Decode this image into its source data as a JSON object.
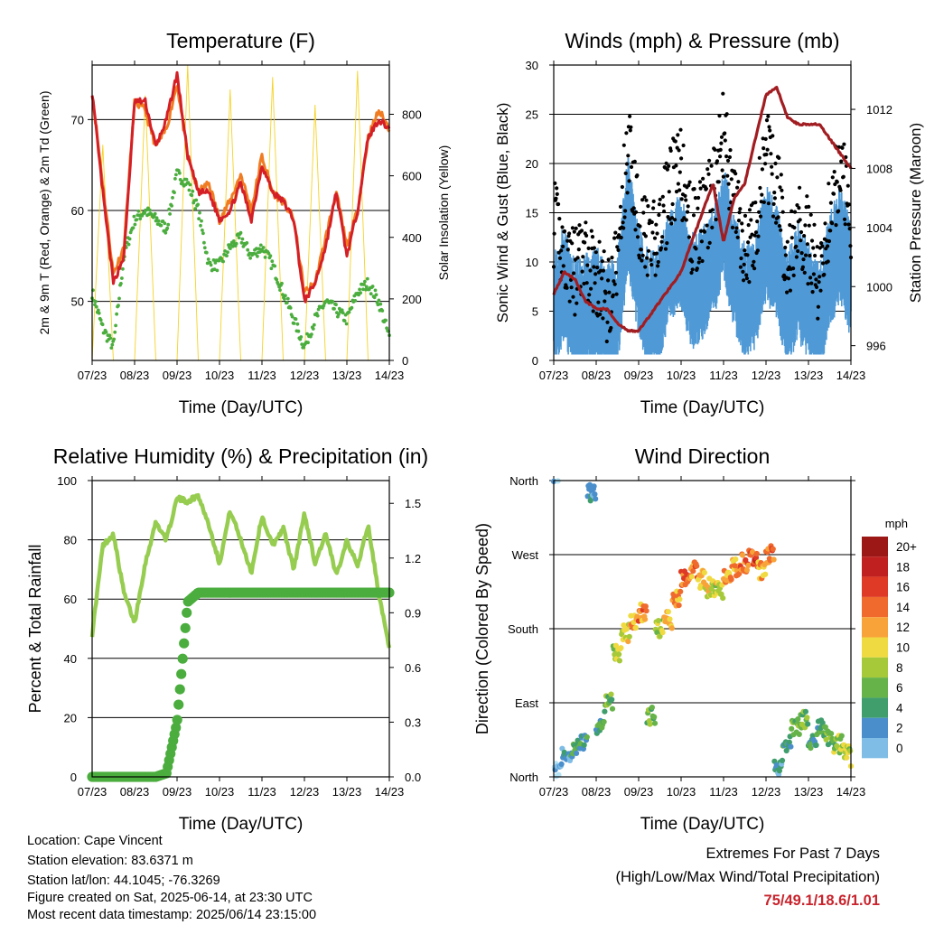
{
  "colors": {
    "temp_2m": "#d41f26",
    "temp_9m": "#f07c22",
    "dewpoint": "#4bad3e",
    "solar": "#f5d327",
    "wind": "#4f9ad6",
    "gust": "#000000",
    "pressure": "#a11d21",
    "rh": "#96cd50",
    "precip": "#4bad3e",
    "extremes": "#c8242d",
    "speed_scale": [
      "#b3e3f5",
      "#7fbde6",
      "#4a8fcb",
      "#3f9e6c",
      "#66b34a",
      "#a6c93a",
      "#f0da41",
      "#f8a33a",
      "#ef6a2c",
      "#de3a25",
      "#c0201f",
      "#9b1817"
    ]
  },
  "charts": [
    {
      "id": "temperature",
      "title": "Temperature (F)",
      "xlabel": "Time (Day/UTC)",
      "ylabel": "2m & 9m T (Red, Orange) & 2m Td (Green)",
      "y2label": "Solar Insolation (Yellow)",
      "xticks": [
        "07/23",
        "08/23",
        "09/23",
        "10/23",
        "11/23",
        "12/23",
        "13/23",
        "14/23"
      ],
      "yticks": [
        50,
        60,
        70
      ],
      "y2ticks": [
        0,
        200,
        400,
        600,
        800
      ]
    },
    {
      "id": "wind",
      "title": "Winds (mph) & Pressure (mb)",
      "xlabel": "Time (Day/UTC)",
      "ylabel": "Sonic Wind & Gust (Blue, Black)",
      "y2label": "Station Pressure (Maroon)",
      "xticks": [
        "07/23",
        "08/23",
        "09/23",
        "10/23",
        "11/23",
        "12/23",
        "13/23",
        "14/23"
      ],
      "yticks": [
        0,
        5,
        10,
        15,
        20,
        25,
        30
      ],
      "y2ticks": [
        996,
        1000,
        1004,
        1008,
        1012
      ]
    },
    {
      "id": "humidity",
      "title": "Relative Humidity (%) & Precipitation (in)",
      "xlabel": "Time (Day/UTC)",
      "ylabel": "Percent & Total Rainfall",
      "xticks": [
        "07/23",
        "08/23",
        "09/23",
        "10/23",
        "11/23",
        "12/23",
        "13/23",
        "14/23"
      ],
      "yticks": [
        0,
        20,
        40,
        60,
        80,
        100
      ],
      "y2ticks": [
        "0.0",
        "0.3",
        "0.6",
        "0.9",
        "1.2",
        "1.5"
      ]
    },
    {
      "id": "direction",
      "title": "Wind Direction",
      "xlabel": "Time (Day/UTC)",
      "ylabel": "Direction (Colored By Speed)",
      "xticks": [
        "07/23",
        "08/23",
        "09/23",
        "10/23",
        "11/23",
        "12/23",
        "13/23",
        "14/23"
      ],
      "ytick_labels": [
        "North",
        "East",
        "South",
        "West",
        "North"
      ],
      "legend_title": "mph",
      "legend_labels": [
        "20+",
        "18",
        "16",
        "14",
        "12",
        "10",
        "8",
        "6",
        "4",
        "2",
        "0"
      ]
    }
  ],
  "chart_data": [
    {
      "type": "line",
      "x_days": [
        0,
        0.25,
        0.5,
        0.75,
        1,
        1.25,
        1.5,
        1.75,
        2,
        2.25,
        2.5,
        2.75,
        3,
        3.25,
        3.5,
        3.75,
        4,
        4.25,
        4.5,
        4.75,
        5,
        5.25,
        5.5,
        5.75,
        6,
        6.25,
        6.5,
        6.75,
        7
      ],
      "series": [
        {
          "values": [
            73,
            62,
            52,
            55,
            72,
            72,
            67,
            70,
            75,
            66,
            62,
            62,
            59,
            60,
            63,
            59,
            65,
            62,
            61,
            59,
            50,
            52,
            56,
            62,
            55,
            60,
            68,
            70,
            69
          ]
        },
        {
          "values": [
            73,
            63,
            53,
            56,
            72,
            71,
            67,
            69,
            74,
            66,
            62,
            63,
            59,
            61,
            64,
            60,
            66,
            62,
            61,
            59,
            51,
            52,
            57,
            62,
            56,
            60,
            68,
            71,
            69
          ]
        },
        {
          "values": [
            51,
            47,
            45,
            55,
            59,
            60,
            59,
            58,
            64,
            63,
            60,
            54,
            54,
            56,
            57,
            55,
            56,
            54,
            51,
            48,
            45,
            48,
            50,
            49,
            48,
            51,
            52,
            50,
            46
          ]
        },
        {
          "values": [
            0,
            700,
            0,
            0,
            0,
            860,
            0,
            0,
            0,
            960,
            0,
            0,
            0,
            880,
            0,
            0,
            0,
            920,
            0,
            0,
            0,
            830,
            0,
            0,
            0,
            940,
            0,
            0,
            0
          ]
        }
      ],
      "ylim": [
        43.5,
        76
      ],
      "y2lim": [
        0,
        960
      ]
    },
    {
      "type": "line",
      "x_days": [
        0,
        0.25,
        0.5,
        0.75,
        1,
        1.25,
        1.5,
        1.75,
        2,
        2.25,
        2.5,
        2.75,
        3,
        3.25,
        3.5,
        3.75,
        4,
        4.25,
        4.5,
        4.75,
        5,
        5.25,
        5.5,
        5.75,
        6,
        6.25,
        6.5,
        6.75,
        7
      ],
      "series": [
        {
          "values": [
            5,
            8,
            4,
            5,
            6,
            4,
            5,
            15,
            8,
            5,
            6,
            10,
            11,
            7,
            8,
            10,
            14,
            9,
            6,
            7,
            12,
            10,
            5,
            8,
            6,
            4,
            9,
            12,
            8
          ]
        },
        {
          "values": [
            14,
            11,
            9,
            10,
            9,
            6,
            10,
            22,
            15,
            11,
            13,
            18,
            19,
            13,
            14,
            17,
            23,
            16,
            11,
            13,
            21,
            18,
            10,
            14,
            12,
            8,
            15,
            20,
            14
          ]
        },
        {
          "values": [
            999.5,
            1001,
            1000.5,
            999,
            998.5,
            998.5,
            997.5,
            997,
            997,
            998,
            999,
            1000,
            1001,
            1003,
            1005,
            1007,
            1003,
            1006,
            1007,
            1010,
            1013,
            1013.5,
            1011.5,
            1011,
            1011,
            1011,
            1010,
            1009,
            1008
          ]
        }
      ],
      "ylim": [
        0,
        30
      ],
      "y2lim": [
        995,
        1015
      ]
    },
    {
      "type": "line",
      "x_days": [
        0,
        0.25,
        0.5,
        0.75,
        1,
        1.25,
        1.5,
        1.75,
        2,
        2.25,
        2.5,
        2.75,
        3,
        3.25,
        3.5,
        3.75,
        4,
        4.25,
        4.5,
        4.75,
        5,
        5.25,
        5.5,
        5.75,
        6,
        6.25,
        6.5,
        6.75,
        7
      ],
      "series": [
        {
          "values": [
            48,
            78,
            82,
            62,
            52,
            72,
            86,
            80,
            94,
            93,
            95,
            85,
            72,
            90,
            80,
            69,
            88,
            78,
            84,
            70,
            89,
            72,
            82,
            68,
            80,
            71,
            85,
            62,
            43
          ]
        },
        {
          "values": [
            0,
            0,
            0,
            0,
            0,
            0,
            0,
            0.02,
            0.3,
            0.96,
            1.01,
            1.01,
            1.01,
            1.01,
            1.01,
            1.01,
            1.01,
            1.01,
            1.01,
            1.01,
            1.01,
            1.01,
            1.01,
            1.01,
            1.01,
            1.01,
            1.01,
            1.01,
            1.01
          ]
        }
      ],
      "ylim": [
        0,
        100
      ],
      "y2lim": [
        0,
        1.625
      ]
    },
    {
      "type": "scatter",
      "x_days": [
        0,
        0.2,
        0.4,
        0.6,
        0.8,
        1.0,
        1.2,
        1.4,
        1.6,
        1.8,
        2.0,
        2.2,
        2.4,
        2.6,
        2.8,
        3.0,
        3.2,
        3.4,
        3.6,
        3.8,
        4.0,
        4.2,
        4.4,
        4.6,
        4.8,
        5.0,
        5.2,
        5.4,
        5.6,
        5.8,
        6.0,
        6.2,
        6.4,
        6.6,
        6.8,
        7.0
      ],
      "series": [
        {
          "values": [
            10,
            25,
            35,
            40,
            345,
            60,
            90,
            150,
            175,
            190,
            200,
            75,
            180,
            190,
            215,
            240,
            250,
            240,
            230,
            225,
            245,
            255,
            260,
            265,
            250,
            270,
            10,
            40,
            60,
            70,
            45,
            60,
            50,
            40,
            30,
            20
          ]
        },
        {
          "values": [
            2,
            4,
            6,
            5,
            4,
            6,
            8,
            10,
            12,
            14,
            15,
            8,
            10,
            13,
            14,
            16,
            15,
            13,
            12,
            11,
            14,
            15,
            16,
            17,
            14,
            16,
            4,
            6,
            8,
            9,
            6,
            7,
            8,
            9,
            10,
            12
          ]
        }
      ],
      "ylim": [
        0,
        360
      ]
    }
  ],
  "info": {
    "location": "Location: Cape Vincent",
    "elevation": "Station elevation: 83.6371 m",
    "latlon": "Station lat/lon: 44.1045; -76.3269",
    "created": "Figure created on Sat, 2025-06-14, at 23:30 UTC",
    "recent": "Most recent data timestamp: 2025/06/14 23:15:00"
  },
  "extremes": {
    "heading": "Extremes For Past 7 Days",
    "subheading": "(High/Low/Max Wind/Total Precipitation)",
    "values": "75/49.1/18.6/1.01"
  }
}
